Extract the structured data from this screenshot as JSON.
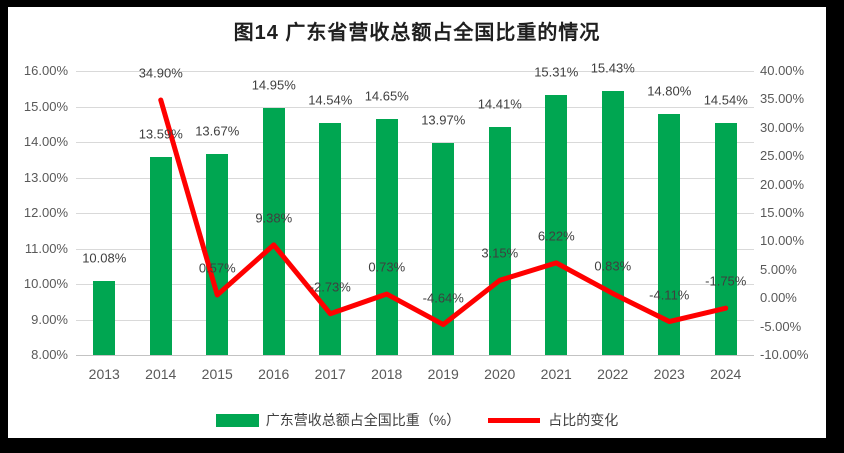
{
  "title": "图14  广东省营收总额占全国比重的情况",
  "legend": {
    "bar_label": "广东营收总额占全国比重（%）",
    "line_label": "占比的变化"
  },
  "colors": {
    "bar": "#00A651",
    "line": "#FF0000",
    "grid": "#D9D9D9",
    "axis_line": "#C3C3C3",
    "tick_text": "#595959",
    "label_text": "#3F3F3F",
    "title_text": "#1F1F1F",
    "frame": "#000000",
    "background": "#FFFFFF"
  },
  "chart_data": {
    "type": "bar+line combo",
    "title": "图14  广东省营收总额占全国比重的情况",
    "categories": [
      "2013",
      "2014",
      "2015",
      "2016",
      "2017",
      "2018",
      "2019",
      "2020",
      "2021",
      "2022",
      "2023",
      "2024"
    ],
    "series": [
      {
        "name": "广东营收总额占全国比重（%）",
        "type": "bar",
        "axis": "left",
        "color": "#00A651",
        "values": [
          10.08,
          13.59,
          13.67,
          14.95,
          14.54,
          14.65,
          13.97,
          14.41,
          15.31,
          15.43,
          14.8,
          14.54
        ],
        "labels": [
          "10.08%",
          "13.59%",
          "13.67%",
          "14.95%",
          "14.54%",
          "14.65%",
          "13.97%",
          "14.41%",
          "15.31%",
          "15.43%",
          "14.80%",
          "14.54%"
        ]
      },
      {
        "name": "占比的变化",
        "type": "line",
        "axis": "right",
        "color": "#FF0000",
        "values": [
          null,
          34.9,
          0.57,
          9.38,
          -2.73,
          0.73,
          -4.64,
          3.15,
          6.22,
          0.83,
          -4.11,
          -1.75
        ],
        "labels": [
          null,
          "34.90%",
          "0.57%",
          "9.38%",
          "-2.73%",
          "0.73%",
          "-4.64%",
          "3.15%",
          "6.22%",
          "0.83%",
          "-4.11%",
          "-1.75%"
        ]
      }
    ],
    "left_axis": {
      "min": 8,
      "max": 16,
      "tick_step": 1,
      "ticks": [
        "16.00%",
        "15.00%",
        "14.00%",
        "13.00%",
        "12.00%",
        "11.00%",
        "10.00%",
        "9.00%",
        "8.00%"
      ]
    },
    "right_axis": {
      "min": -10,
      "max": 40,
      "tick_step": 5,
      "ticks": [
        "40.00%",
        "35.00%",
        "30.00%",
        "25.00%",
        "20.00%",
        "15.00%",
        "10.00%",
        "5.00%",
        "0.00%",
        "-5.00%",
        "-10.00%"
      ]
    },
    "grid": "horizontal",
    "legend_position": "bottom"
  }
}
